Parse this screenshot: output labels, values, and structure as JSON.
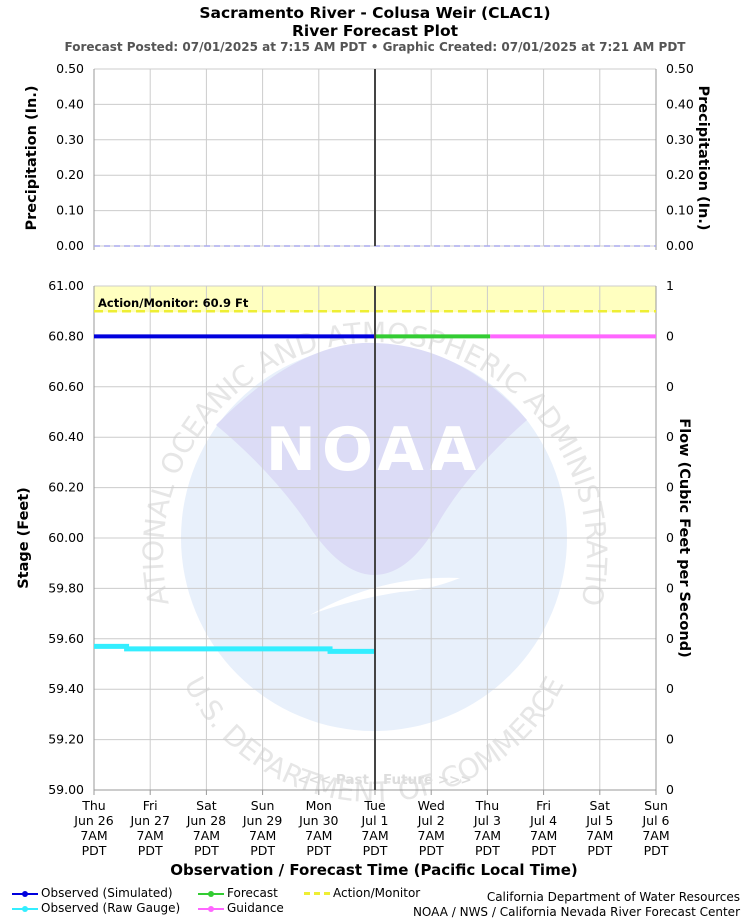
{
  "header": {
    "title_line1": "Sacramento River - Colusa Weir (CLAC1)",
    "title_line2": "River Forecast Plot",
    "posted": "Forecast Posted: 07/01/2025 at 7:15 AM PDT",
    "separator": "•",
    "created": "Graphic Created: 07/01/2025 at 7:21 AM PDT"
  },
  "colors": {
    "observed_simulated": "#0000dd",
    "observed_raw": "#33eeff",
    "forecast": "#33cc33",
    "guidance": "#ff66ff",
    "action_monitor": "#eeee33",
    "action_band": "#ffffc0",
    "precip_line": "#aaaaee",
    "grid": "#cccccc"
  },
  "watermark": {
    "logo_text": "NOAA",
    "ring_top": "NATIONAL OCEANIC AND ATMOSPHERIC ADMINISTRATION",
    "ring_bottom": "U.S. DEPARTMENT OF COMMERCE"
  },
  "legend": [
    {
      "label": "Observed (Simulated)",
      "key": "observed_simulated",
      "marker": "dot"
    },
    {
      "label": "Observed (Raw Gauge)",
      "key": "observed_raw",
      "marker": "dot"
    },
    {
      "label": "Forecast",
      "key": "forecast",
      "marker": "dot"
    },
    {
      "label": "Guidance",
      "key": "guidance",
      "marker": "dot"
    },
    {
      "label": "Action/Monitor",
      "key": "action_monitor",
      "marker": "dash"
    }
  ],
  "credits": {
    "line1": "California Department of Water Resources",
    "line2": "NOAA / NWS / California Nevada River Forecast Center"
  },
  "chart_data": [
    {
      "type": "line",
      "ylabel_left": "Precipitation (In.)",
      "ylabel_right": "Precipitation (In.)",
      "ylim": [
        0,
        0.5
      ],
      "y_ticks": [
        "0.00",
        "0.10",
        "0.20",
        "0.30",
        "0.40",
        "0.50"
      ],
      "grid": true,
      "series": [
        {
          "key": "precip_line",
          "x": [
            0,
            10
          ],
          "values": [
            0,
            0
          ]
        }
      ]
    },
    {
      "type": "line",
      "xlabel": "Observation / Forecast Time (Pacific Local Time)",
      "ylabel_left": "Stage (Feet)",
      "ylabel_right": "Flow (Cubic Feet per Second)",
      "ylim": [
        59.0,
        61.0
      ],
      "y_ticks": [
        "59.00",
        "59.20",
        "59.40",
        "59.60",
        "59.80",
        "60.00",
        "60.20",
        "60.40",
        "60.60",
        "60.80",
        "61.00"
      ],
      "right_ticks": [
        "0",
        "0",
        "0",
        "0",
        "0",
        "0",
        "0",
        "0",
        "0",
        "0",
        "1"
      ],
      "grid": true,
      "x_ticks": [
        {
          "day": "Thu",
          "date": "Jun 26",
          "time": "7AM",
          "tz": "PDT"
        },
        {
          "day": "Fri",
          "date": "Jun 27",
          "time": "7AM",
          "tz": "PDT"
        },
        {
          "day": "Sat",
          "date": "Jun 28",
          "time": "7AM",
          "tz": "PDT"
        },
        {
          "day": "Sun",
          "date": "Jun 29",
          "time": "7AM",
          "tz": "PDT"
        },
        {
          "day": "Mon",
          "date": "Jun 30",
          "time": "7AM",
          "tz": "PDT"
        },
        {
          "day": "Tue",
          "date": "Jul 1",
          "time": "7AM",
          "tz": "PDT"
        },
        {
          "day": "Wed",
          "date": "Jul 2",
          "time": "7AM",
          "tz": "PDT"
        },
        {
          "day": "Thu",
          "date": "Jul 3",
          "time": "7AM",
          "tz": "PDT"
        },
        {
          "day": "Fri",
          "date": "Jul 4",
          "time": "7AM",
          "tz": "PDT"
        },
        {
          "day": "Sat",
          "date": "Jul 5",
          "time": "7AM",
          "tz": "PDT"
        },
        {
          "day": "Sun",
          "date": "Jul 6",
          "time": "7AM",
          "tz": "PDT"
        }
      ],
      "now_index": 5,
      "past_label": "<<< Past",
      "future_label": "Future >>>",
      "action_monitor": {
        "label": "Action/Monitor: 60.9 Ft",
        "value": 60.9
      },
      "series": [
        {
          "name": "Observed (Simulated)",
          "key": "observed_simulated",
          "x": [
            0,
            5
          ],
          "values": [
            60.8,
            60.8
          ]
        },
        {
          "name": "Observed (Raw Gauge)",
          "key": "observed_raw",
          "x": [
            0,
            0.58,
            0.58,
            4.2,
            4.2,
            5
          ],
          "values": [
            59.57,
            59.57,
            59.56,
            59.56,
            59.55,
            59.55
          ]
        },
        {
          "name": "Forecast",
          "key": "forecast",
          "x": [
            5,
            7.05
          ],
          "values": [
            60.8,
            60.8
          ]
        },
        {
          "name": "Guidance",
          "key": "guidance",
          "x": [
            7.05,
            10
          ],
          "values": [
            60.8,
            60.8
          ]
        }
      ]
    }
  ]
}
